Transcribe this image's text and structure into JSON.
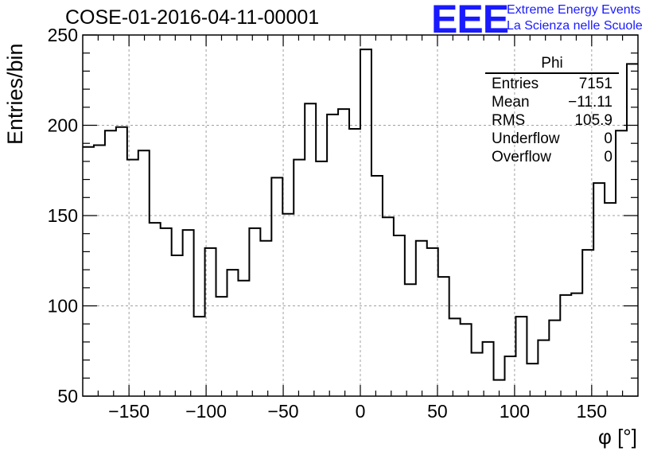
{
  "header": {
    "title": "COSE-01-2016-04-11-00001",
    "logo": "EEE",
    "logo_line1": "Extreme Energy Events",
    "logo_line2": "La Scienza nelle Scuole"
  },
  "stats_box": {
    "title": "Phi",
    "rows": [
      {
        "label": "Entries",
        "value": "7151"
      },
      {
        "label": "Mean",
        "value": "−11.11"
      },
      {
        "label": "RMS",
        "value": "105.9"
      },
      {
        "label": "Underflow",
        "value": "0"
      },
      {
        "label": "Overflow",
        "value": "0"
      }
    ]
  },
  "chart_data": {
    "type": "histogram",
    "title": "COSE-01-2016-04-11-00001",
    "xlabel": "φ [°]",
    "ylabel": "Entries/bin",
    "xlim": [
      -180,
      180
    ],
    "ylim": [
      50,
      250
    ],
    "bin_width": 7.2,
    "x_ticks": [
      -150,
      -100,
      -50,
      0,
      50,
      100,
      150
    ],
    "x_tick_labels": [
      "−150",
      "−100",
      "−50",
      "0",
      "50",
      "100",
      "150"
    ],
    "y_ticks": [
      50,
      100,
      150,
      200,
      250
    ],
    "y_tick_labels": [
      "50",
      "100",
      "150",
      "200",
      "250"
    ],
    "grid": true,
    "values": [
      188,
      189,
      197,
      199,
      181,
      186,
      146,
      143,
      128,
      142,
      94,
      132,
      105,
      120,
      114,
      143,
      136,
      171,
      151,
      181,
      212,
      180,
      206,
      209,
      198,
      242,
      172,
      149,
      139,
      112,
      136,
      132,
      116,
      93,
      90,
      74,
      80,
      59,
      72,
      94,
      68,
      81,
      92,
      106,
      107,
      131,
      168,
      157,
      197,
      234
    ]
  },
  "colors": {
    "line": "#000000",
    "grid": "#a0a0a0",
    "logo": "#1a1aff"
  }
}
